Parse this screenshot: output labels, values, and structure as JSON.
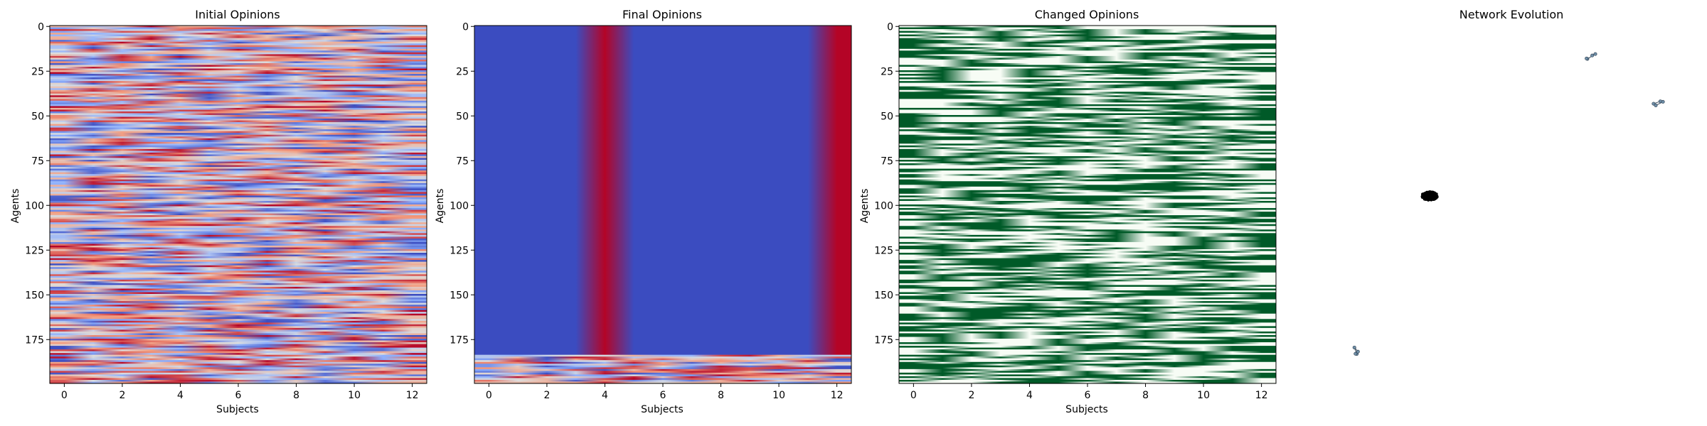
{
  "chart_data": [
    {
      "type": "heatmap",
      "title": "Initial Opinions",
      "xlabel": "Subjects",
      "ylabel": "Agents",
      "colormap": "coolwarm",
      "rows": 200,
      "cols": 13,
      "xlim": [
        -0.5,
        12.5
      ],
      "ylim": [
        199.5,
        -0.5
      ],
      "xticks": [
        0,
        2,
        4,
        6,
        8,
        10,
        12
      ],
      "yticks": [
        0,
        25,
        50,
        75,
        100,
        125,
        150,
        175
      ],
      "pattern": "random"
    },
    {
      "type": "heatmap",
      "title": "Final Opinions",
      "xlabel": "Subjects",
      "ylabel": "Agents",
      "colormap": "coolwarm",
      "rows": 200,
      "cols": 13,
      "xlim": [
        -0.5,
        12.5
      ],
      "ylim": [
        199.5,
        -0.5
      ],
      "xticks": [
        0,
        2,
        4,
        6,
        8,
        10,
        12
      ],
      "yticks": [
        0,
        25,
        50,
        75,
        100,
        125,
        150,
        175
      ],
      "pattern": "consensus",
      "high_columns": [
        4,
        12
      ]
    },
    {
      "type": "heatmap",
      "title": "Changed Opinions",
      "xlabel": "Subjects",
      "ylabel": "Agents",
      "colormap": "Greens",
      "rows": 200,
      "cols": 13,
      "xlim": [
        -0.5,
        12.5
      ],
      "ylim": [
        199.5,
        -0.5
      ],
      "xticks": [
        0,
        2,
        4,
        6,
        8,
        10,
        12
      ],
      "yticks": [
        0,
        25,
        50,
        75,
        100,
        125,
        150,
        175
      ],
      "pattern": "binary"
    },
    {
      "type": "network",
      "title": "Network Evolution",
      "clusters": [
        {
          "size": "large",
          "nodes": 180
        },
        {
          "size": "small",
          "nodes": 4
        },
        {
          "size": "small",
          "nodes": 4
        },
        {
          "size": "small",
          "nodes": 4
        }
      ]
    }
  ]
}
